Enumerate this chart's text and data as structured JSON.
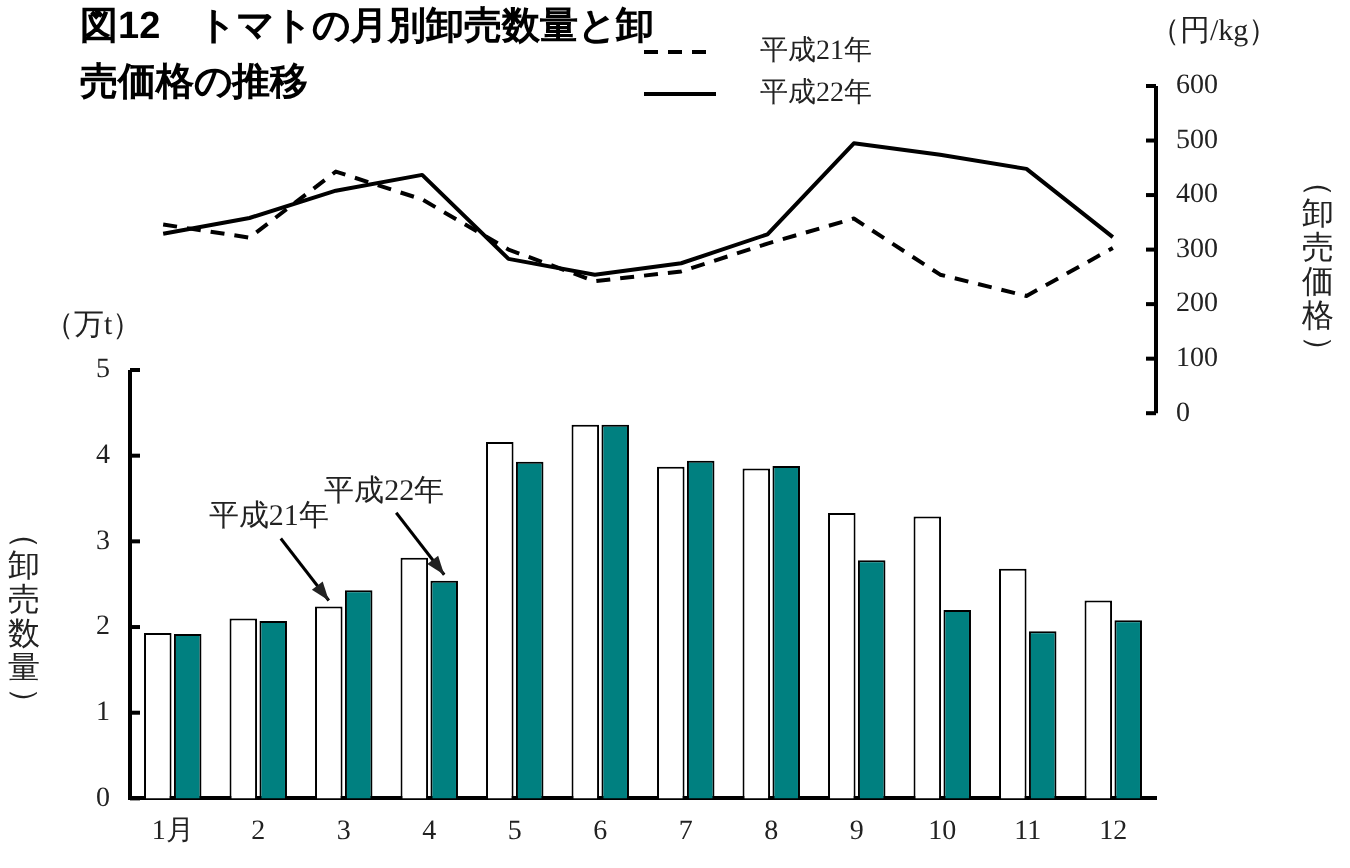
{
  "chart_data": [
    {
      "type": "line",
      "title": "図12　トマトの月別卸売数量と卸売価格の推移",
      "ylabel": "（卸売価格）",
      "categories": [
        null,
        null,
        null,
        null,
        null,
        null,
        null,
        null,
        null,
        null,
        null,
        null
      ],
      "series": [
        {
          "name": "平成21年",
          "color": "#000000",
          "line_style": "dashed",
          "values": [
            346,
            322,
            443,
            392,
            300,
            242,
            260,
            311,
            357,
            254,
            215,
            303
          ]
        },
        {
          "name": "平成22年",
          "color": "#000000",
          "line_style": "solid",
          "values": [
            329,
            358,
            408,
            437,
            283,
            254,
            275,
            328,
            495,
            474,
            448,
            323
          ]
        }
      ],
      "ylim": [
        0,
        600
      ],
      "yticks": [
        0,
        100,
        200,
        300,
        400,
        500,
        600
      ],
      "tick_labels": "y",
      "legend": "top",
      "annotations": [
        "（円/kg）"
      ]
    },
    {
      "type": "bar",
      "ylabel": "（卸売数量）",
      "categories": [
        "1月",
        "2",
        "3",
        "4",
        "5",
        "6",
        "7",
        "8",
        "9",
        "10",
        "11",
        "12"
      ],
      "series": [
        {
          "color": "#ffffff",
          "values": [
            1.93,
            2.1,
            2.24,
            2.81,
            4.16,
            4.36,
            3.87,
            3.85,
            3.33,
            3.29,
            2.68,
            2.31
          ]
        },
        {
          "color": "#008080",
          "values": [
            1.92,
            2.07,
            2.43,
            2.54,
            3.93,
            4.36,
            3.94,
            3.88,
            2.78,
            2.2,
            1.95,
            2.08
          ]
        }
      ],
      "ylim": [
        0,
        5
      ],
      "yticks": [
        0,
        1,
        2,
        3,
        4,
        5
      ],
      "annotations": [
        "（万t）",
        {
          "text": "平成21年",
          "x": "3",
          "y": 2.24
        },
        {
          "text": "平成22年",
          "x": "4",
          "y": 2.54
        }
      ]
    }
  ]
}
